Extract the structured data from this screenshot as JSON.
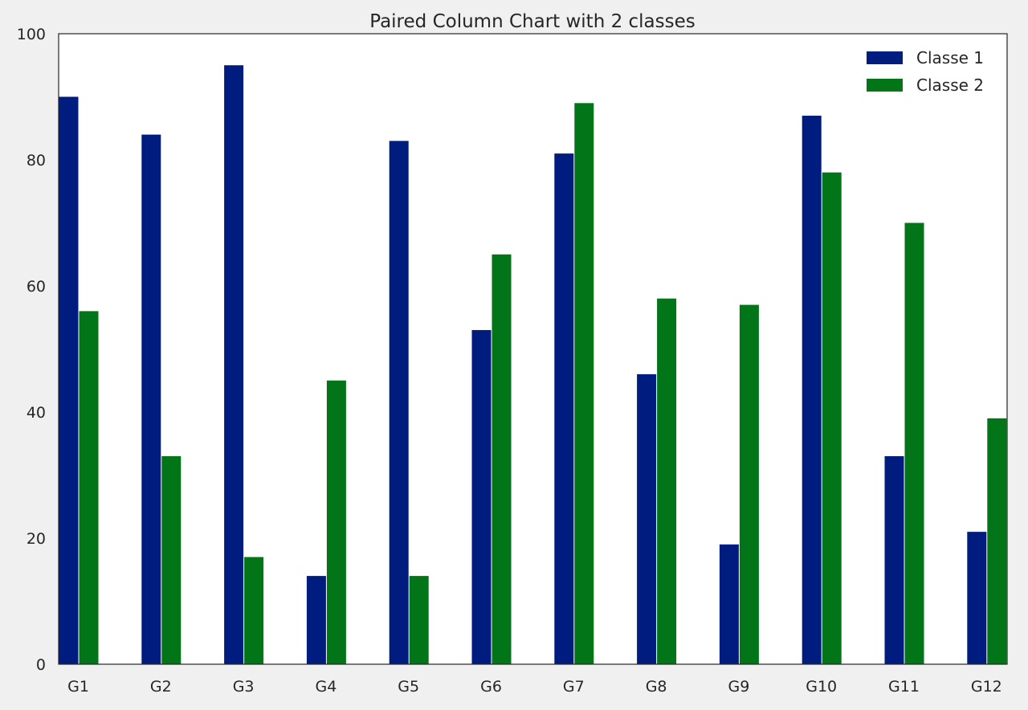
{
  "chart_data": {
    "type": "bar",
    "title": "Paired Column Chart with 2 classes",
    "xlabel": "",
    "ylabel": "",
    "categories": [
      "G1",
      "G2",
      "G3",
      "G4",
      "G5",
      "G6",
      "G7",
      "G8",
      "G9",
      "G10",
      "G11",
      "G12"
    ],
    "series": [
      {
        "name": "Classe 1",
        "color": "#001c7f",
        "values": [
          90,
          84,
          95,
          14,
          83,
          53,
          81,
          46,
          19,
          87,
          33,
          21
        ]
      },
      {
        "name": "Classe 2",
        "color": "#017517",
        "values": [
          56,
          33,
          17,
          45,
          14,
          65,
          89,
          58,
          57,
          78,
          70,
          39
        ]
      }
    ],
    "ylim": [
      0,
      100
    ],
    "yticks": [
      0,
      20,
      40,
      60,
      80,
      100
    ],
    "grid": false,
    "legend_position": "top-right",
    "background": "#ffffff",
    "figure_background": "#f0f0f0"
  }
}
